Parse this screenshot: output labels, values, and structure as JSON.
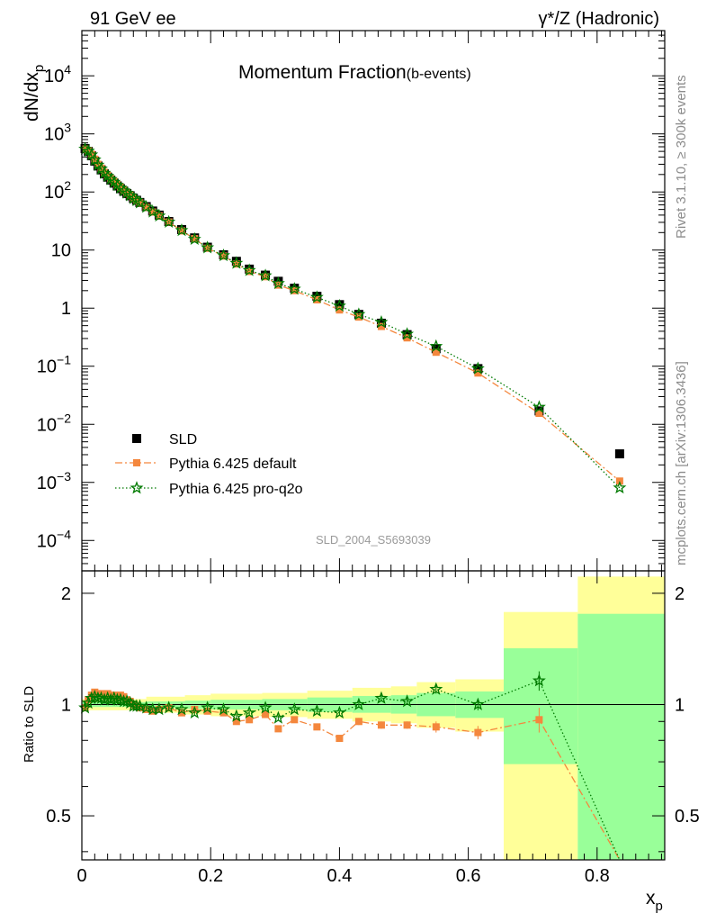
{
  "header": {
    "left": "91 GeV ee",
    "right": "γ*/Z (Hadronic)"
  },
  "side_labels": {
    "rivet": "Rivet 3.1.10, ≥ 300k events",
    "mcplots": "mcplots.cern.ch [arXiv:1306.3436]"
  },
  "chart_data": {
    "type": "scatter",
    "title": "Momentum Fraction",
    "title_suffix": "(b-events)",
    "analysis_tag": "SLD_2004_S5693039",
    "ylabel_main": "dN/dx",
    "ylabel_main_sub": "p",
    "ylabel_ratio": "Ratio to SLD",
    "xlabel": "x",
    "xlabel_sub": "p",
    "xlim": [
      0,
      0.905
    ],
    "ylim_main": [
      3e-05,
      60000
    ],
    "ylim_ratio": [
      0.38,
      2.3
    ],
    "y_scale_main": "log",
    "y_scale_ratio": "log",
    "legend_placement": "bottom-left",
    "x_ticks": [
      "0",
      "0.2",
      "0.4",
      "0.6",
      "0.8"
    ],
    "y_ticks_main": [
      {
        "v": 0.0001,
        "base": "10",
        "exp": "−4"
      },
      {
        "v": 0.001,
        "base": "10",
        "exp": "−3"
      },
      {
        "v": 0.01,
        "base": "10",
        "exp": "−2"
      },
      {
        "v": 0.1,
        "base": "10",
        "exp": "−1"
      },
      {
        "v": 1,
        "base": "1",
        "exp": ""
      },
      {
        "v": 10,
        "base": "10",
        "exp": ""
      },
      {
        "v": 100,
        "base": "10",
        "exp": "2"
      },
      {
        "v": 1000,
        "base": "10",
        "exp": "3"
      },
      {
        "v": 10000,
        "base": "10",
        "exp": "4"
      }
    ],
    "y_ticks_ratio": [
      "0.5",
      "1",
      "2"
    ],
    "x": [
      0.005,
      0.01,
      0.015,
      0.02,
      0.025,
      0.03,
      0.035,
      0.04,
      0.045,
      0.05,
      0.055,
      0.06,
      0.065,
      0.07,
      0.075,
      0.08,
      0.085,
      0.09,
      0.1,
      0.11,
      0.12,
      0.135,
      0.155,
      0.175,
      0.195,
      0.22,
      0.24,
      0.26,
      0.285,
      0.305,
      0.33,
      0.365,
      0.4,
      0.43,
      0.465,
      0.505,
      0.55,
      0.615,
      0.71,
      0.835
    ],
    "bands": [
      {
        "x0": 0.0,
        "x1": 0.1,
        "yellow": [
          0.965,
          1.035
        ],
        "green": [
          0.985,
          1.015
        ]
      },
      {
        "x0": 0.1,
        "x1": 0.16,
        "yellow": [
          0.95,
          1.05
        ],
        "green": [
          0.98,
          1.02
        ]
      },
      {
        "x0": 0.16,
        "x1": 0.2,
        "yellow": [
          0.94,
          1.06
        ],
        "green": [
          0.975,
          1.025
        ]
      },
      {
        "x0": 0.2,
        "x1": 0.28,
        "yellow": [
          0.93,
          1.07
        ],
        "green": [
          0.97,
          1.03
        ]
      },
      {
        "x0": 0.28,
        "x1": 0.35,
        "yellow": [
          0.925,
          1.075
        ],
        "green": [
          0.965,
          1.035
        ]
      },
      {
        "x0": 0.35,
        "x1": 0.42,
        "yellow": [
          0.915,
          1.09
        ],
        "green": [
          0.955,
          1.045
        ]
      },
      {
        "x0": 0.42,
        "x1": 0.48,
        "yellow": [
          0.9,
          1.11
        ],
        "green": [
          0.95,
          1.055
        ]
      },
      {
        "x0": 0.48,
        "x1": 0.52,
        "yellow": [
          0.89,
          1.12
        ],
        "green": [
          0.945,
          1.06
        ]
      },
      {
        "x0": 0.52,
        "x1": 0.58,
        "yellow": [
          0.865,
          1.15
        ],
        "green": [
          0.93,
          1.075
        ]
      },
      {
        "x0": 0.58,
        "x1": 0.655,
        "yellow": [
          0.845,
          1.17
        ],
        "green": [
          0.92,
          1.085
        ]
      },
      {
        "x0": 0.655,
        "x1": 0.77,
        "yellow": [
          0.38,
          1.78
        ],
        "green": [
          0.69,
          1.42
        ]
      },
      {
        "x0": 0.77,
        "x1": 0.905,
        "yellow": [
          0.38,
          2.22
        ],
        "green": [
          0.38,
          1.76
        ]
      }
    ],
    "series": [
      {
        "name": "SLD",
        "color": "#000000",
        "marker": "square",
        "values": [
          560,
          500,
          420,
          340,
          280,
          240,
          205,
          180,
          160,
          142,
          127,
          114,
          103,
          94,
          86,
          78,
          72,
          66,
          56,
          47,
          40,
          31,
          22.5,
          16.2,
          11.2,
          8.3,
          6.4,
          4.7,
          3.7,
          2.9,
          2.2,
          1.6,
          1.15,
          0.78,
          0.55,
          0.35,
          0.2,
          0.091,
          0.017,
          0.0031
        ]
      },
      {
        "name": "Pythia 6.425 default",
        "color": "#f4873d",
        "marker": "square-small",
        "dash": "8,3,2,3",
        "ratio": [
          0.98,
          1.03,
          1.06,
          1.08,
          1.07,
          1.07,
          1.06,
          1.07,
          1.06,
          1.06,
          1.05,
          1.06,
          1.05,
          1.03,
          1.02,
          1.0,
          0.99,
          0.98,
          0.97,
          0.96,
          0.97,
          0.98,
          0.95,
          0.97,
          0.96,
          0.95,
          0.9,
          0.91,
          0.94,
          0.86,
          0.91,
          0.87,
          0.81,
          0.9,
          0.88,
          0.88,
          0.87,
          0.84,
          0.91,
          0.34
        ],
        "ratio_err": [
          0.02,
          0.015,
          0.015,
          0.015,
          0.015,
          0.015,
          0.015,
          0.015,
          0.015,
          0.015,
          0.015,
          0.015,
          0.015,
          0.015,
          0.015,
          0.015,
          0.015,
          0.015,
          0.015,
          0.015,
          0.015,
          0.015,
          0.015,
          0.015,
          0.015,
          0.015,
          0.015,
          0.015,
          0.015,
          0.015,
          0.015,
          0.015,
          0.015,
          0.02,
          0.02,
          0.02,
          0.03,
          0.035,
          0.07,
          0.05
        ]
      },
      {
        "name": "Pythia 6.425 pro-q2o",
        "color": "#007a00",
        "marker": "star",
        "dash": "1.5,2.5",
        "ratio": [
          0.98,
          1.01,
          1.04,
          1.05,
          1.04,
          1.04,
          1.03,
          1.04,
          1.03,
          1.04,
          1.03,
          1.03,
          1.02,
          1.02,
          1.01,
          0.99,
          0.99,
          0.99,
          0.98,
          0.97,
          0.97,
          0.98,
          0.97,
          0.95,
          0.98,
          0.97,
          0.93,
          0.95,
          0.98,
          0.92,
          0.97,
          0.96,
          0.95,
          1.0,
          1.04,
          1.02,
          1.1,
          1.0,
          1.16,
          0.26
        ],
        "ratio_err": [
          0.02,
          0.015,
          0.015,
          0.015,
          0.015,
          0.015,
          0.015,
          0.015,
          0.015,
          0.015,
          0.015,
          0.015,
          0.015,
          0.015,
          0.015,
          0.015,
          0.015,
          0.015,
          0.015,
          0.015,
          0.015,
          0.015,
          0.015,
          0.015,
          0.015,
          0.015,
          0.015,
          0.015,
          0.015,
          0.015,
          0.015,
          0.015,
          0.015,
          0.02,
          0.02,
          0.02,
          0.03,
          0.035,
          0.07,
          0.05
        ]
      }
    ]
  }
}
